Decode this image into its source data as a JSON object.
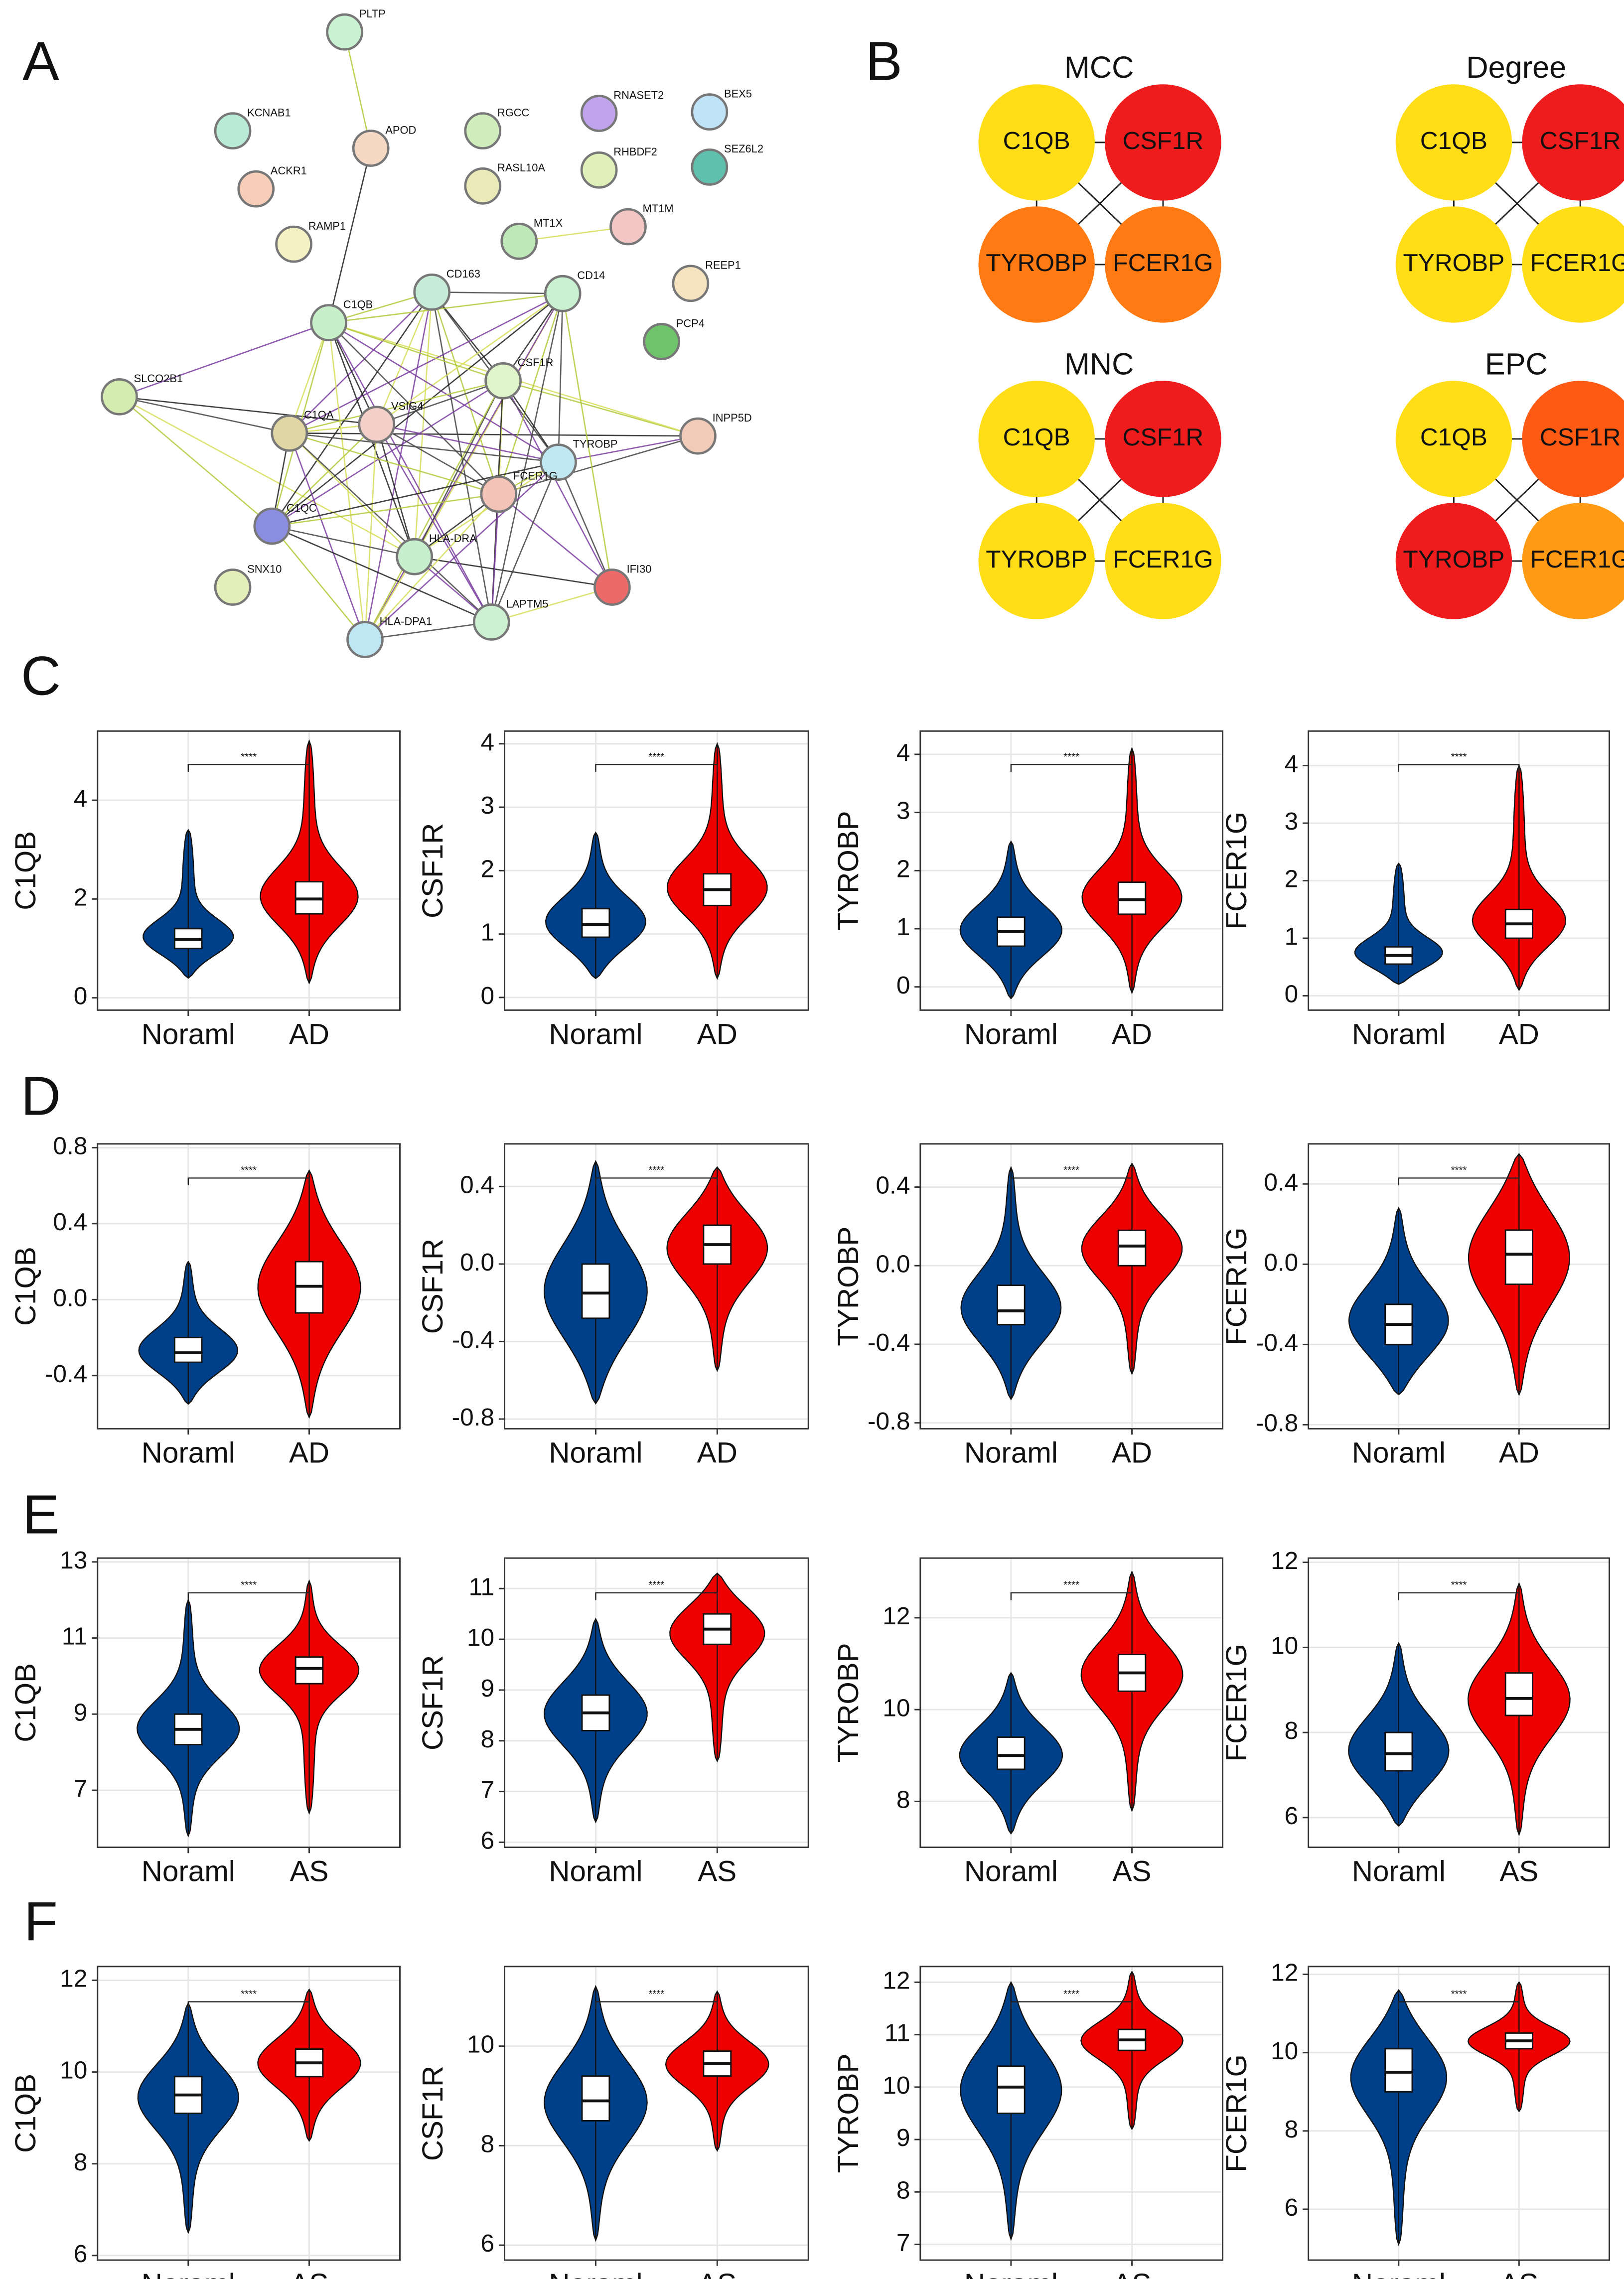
{
  "panel_labels": [
    "A",
    "B",
    "C",
    "D",
    "E",
    "F"
  ],
  "network": {
    "nodes": [
      {
        "label": "PLTP",
        "color": "#c9f2d2"
      },
      {
        "label": "KCNAB1",
        "color": "#b8ead6"
      },
      {
        "label": "APOD",
        "color": "#f6d9c4"
      },
      {
        "label": "ACKR1",
        "color": "#f6cdb7"
      },
      {
        "label": "RAMP1",
        "color": "#f4f2c4"
      },
      {
        "label": "RGCC",
        "color": "#cfeebc"
      },
      {
        "label": "RASL10A",
        "color": "#e9eab8"
      },
      {
        "label": "RNASET2",
        "color": "#bfa3ec"
      },
      {
        "label": "RHBDF2",
        "color": "#dff0b8"
      },
      {
        "label": "BEX5",
        "color": "#bfe3f7"
      },
      {
        "label": "SEZ6L2",
        "color": "#5fc0ae"
      },
      {
        "label": "MT1X",
        "color": "#bfe8b8"
      },
      {
        "label": "MT1M",
        "color": "#f3c6c6"
      },
      {
        "label": "REEP1",
        "color": "#f5e3c0"
      },
      {
        "label": "CD163",
        "color": "#c6ecd8"
      },
      {
        "label": "CD14",
        "color": "#c9f0d0"
      },
      {
        "label": "PCP4",
        "color": "#6fc36b"
      },
      {
        "label": "C1QB",
        "color": "#c8f0c8"
      },
      {
        "label": "SLCO2B1",
        "color": "#d4ecb0"
      },
      {
        "label": "CSF1R",
        "color": "#dff4c8"
      },
      {
        "label": "VSIG4",
        "color": "#f3cfc8"
      },
      {
        "label": "C1QA",
        "color": "#e0d6a4"
      },
      {
        "label": "INPP5D",
        "color": "#f2cbb8"
      },
      {
        "label": "TYROBP",
        "color": "#bfe8f3"
      },
      {
        "label": "FCER1G",
        "color": "#f4c3b7"
      },
      {
        "label": "C1QC",
        "color": "#8b8ee0"
      },
      {
        "label": "HLA-DRA",
        "color": "#c7efce"
      },
      {
        "label": "SNX10",
        "color": "#e3eeb8"
      },
      {
        "label": "IFI30",
        "color": "#ec6a6a"
      },
      {
        "label": "HLA-DPA1",
        "color": "#bfe6f3"
      },
      {
        "label": "LAPTM5",
        "color": "#cdefd2"
      }
    ]
  },
  "hubs": {
    "node_labels": [
      "C1QB",
      "CSF1R",
      "TYROBP",
      "FCER1G"
    ],
    "methods": [
      {
        "title": "MCC",
        "colors": [
          "#ffdd17",
          "#ee1c1c",
          "#ff7a12",
          "#ff7a12"
        ]
      },
      {
        "title": "Degree",
        "colors": [
          "#ffdd17",
          "#ee1c1c",
          "#ffdd17",
          "#ffdd17"
        ]
      },
      {
        "title": "MNC",
        "colors": [
          "#ffdd17",
          "#ee1c1c",
          "#ffdd17",
          "#ffdd17"
        ]
      },
      {
        "title": "EPC",
        "colors": [
          "#ffdd17",
          "#ff5a14",
          "#ee1c1c",
          "#ff9a14"
        ]
      }
    ]
  },
  "chart_data": [
    {
      "type": "violin",
      "ylabel": "C1QB",
      "categories": [
        "Noraml",
        "AD"
      ],
      "colors": [
        "#003f8a",
        "#ee0000"
      ],
      "annotation": "****",
      "grid": true,
      "ylim": [
        -0.25,
        5.4
      ],
      "yticks": [
        0,
        2,
        4
      ],
      "groups": [
        {
          "min": 0.4,
          "q1": 1.0,
          "median": 1.18,
          "q3": 1.4,
          "max": 3.4
        },
        {
          "min": 0.3,
          "q1": 1.7,
          "median": 2.0,
          "q3": 2.35,
          "max": 5.2
        }
      ]
    },
    {
      "type": "violin",
      "ylabel": "CSF1R",
      "categories": [
        "Noraml",
        "AD"
      ],
      "colors": [
        "#003f8a",
        "#ee0000"
      ],
      "annotation": "****",
      "grid": true,
      "ylim": [
        -0.2,
        4.2
      ],
      "yticks": [
        0,
        1,
        2,
        3,
        4
      ],
      "groups": [
        {
          "min": 0.3,
          "q1": 0.95,
          "median": 1.15,
          "q3": 1.4,
          "max": 2.6
        },
        {
          "min": 0.3,
          "q1": 1.45,
          "median": 1.7,
          "q3": 1.95,
          "max": 4.0
        }
      ]
    },
    {
      "type": "violin",
      "ylabel": "TYROBP",
      "categories": [
        "Noraml",
        "AD"
      ],
      "colors": [
        "#003f8a",
        "#ee0000"
      ],
      "annotation": "****",
      "grid": true,
      "ylim": [
        -0.4,
        4.4
      ],
      "yticks": [
        0,
        1,
        2,
        3,
        4
      ],
      "groups": [
        {
          "min": -0.2,
          "q1": 0.7,
          "median": 0.95,
          "q3": 1.2,
          "max": 2.5
        },
        {
          "min": -0.1,
          "q1": 1.25,
          "median": 1.5,
          "q3": 1.8,
          "max": 4.1
        }
      ]
    },
    {
      "type": "violin",
      "ylabel": "FCER1G",
      "categories": [
        "Noraml",
        "AD"
      ],
      "colors": [
        "#003f8a",
        "#ee0000"
      ],
      "annotation": "****",
      "grid": true,
      "ylim": [
        -0.25,
        4.6
      ],
      "yticks": [
        0,
        1,
        2,
        3,
        4
      ],
      "groups": [
        {
          "min": 0.2,
          "q1": 0.55,
          "median": 0.7,
          "q3": 0.85,
          "max": 2.3
        },
        {
          "min": 0.1,
          "q1": 1.0,
          "median": 1.25,
          "q3": 1.5,
          "max": 4.0
        }
      ]
    },
    {
      "type": "violin",
      "ylabel": "C1QB",
      "categories": [
        "Noraml",
        "AD"
      ],
      "colors": [
        "#003f8a",
        "#ee0000"
      ],
      "annotation": "****",
      "grid": true,
      "ylim": [
        -0.68,
        0.82
      ],
      "yticks": [
        -0.4,
        {
          "value": 0,
          "label": "0.0"
        },
        0.4,
        0.8
      ],
      "groups": [
        {
          "min": -0.55,
          "q1": -0.33,
          "median": -0.28,
          "q3": -0.2,
          "max": 0.2
        },
        {
          "min": -0.62,
          "q1": -0.07,
          "median": 0.07,
          "q3": 0.2,
          "max": 0.68
        }
      ]
    },
    {
      "type": "violin",
      "ylabel": "CSF1R",
      "categories": [
        "Noraml",
        "AD"
      ],
      "colors": [
        "#003f8a",
        "#ee0000"
      ],
      "annotation": "****",
      "grid": true,
      "ylim": [
        -0.85,
        0.62
      ],
      "yticks": [
        -0.8,
        -0.4,
        {
          "value": 0,
          "label": "0.0"
        },
        0.4
      ],
      "groups": [
        {
          "min": -0.72,
          "q1": -0.28,
          "median": -0.15,
          "q3": 0.0,
          "max": 0.53
        },
        {
          "min": -0.55,
          "q1": 0.0,
          "median": 0.1,
          "q3": 0.2,
          "max": 0.5
        }
      ]
    },
    {
      "type": "violin",
      "ylabel": "TYROBP",
      "categories": [
        "Noraml",
        "AD"
      ],
      "colors": [
        "#003f8a",
        "#ee0000"
      ],
      "annotation": "****",
      "grid": true,
      "ylim": [
        -0.83,
        0.62
      ],
      "yticks": [
        -0.8,
        -0.4,
        {
          "value": 0,
          "label": "0.0"
        },
        0.4
      ],
      "groups": [
        {
          "min": -0.68,
          "q1": -0.3,
          "median": -0.23,
          "q3": -0.1,
          "max": 0.5
        },
        {
          "min": -0.55,
          "q1": 0.0,
          "median": 0.1,
          "q3": 0.18,
          "max": 0.52
        }
      ]
    },
    {
      "type": "violin",
      "ylabel": "FCER1G",
      "categories": [
        "Noraml",
        "AD"
      ],
      "colors": [
        "#003f8a",
        "#ee0000"
      ],
      "annotation": "****",
      "grid": true,
      "ylim": [
        -0.82,
        0.6
      ],
      "yticks": [
        -0.8,
        -0.4,
        {
          "value": 0,
          "label": "0.0"
        },
        0.4
      ],
      "groups": [
        {
          "min": -0.65,
          "q1": -0.4,
          "median": -0.3,
          "q3": -0.2,
          "max": 0.28
        },
        {
          "min": -0.65,
          "q1": -0.1,
          "median": 0.05,
          "q3": 0.17,
          "max": 0.55
        }
      ]
    },
    {
      "type": "violin",
      "ylabel": "C1QB",
      "categories": [
        "Noraml",
        "AS"
      ],
      "colors": [
        "#003f8a",
        "#ee0000"
      ],
      "annotation": "****",
      "grid": true,
      "ylim": [
        5.5,
        13.1
      ],
      "yticks": [
        7,
        9,
        11,
        13
      ],
      "groups": [
        {
          "min": 5.8,
          "q1": 8.2,
          "median": 8.6,
          "q3": 9.0,
          "max": 12.0
        },
        {
          "min": 6.4,
          "q1": 9.8,
          "median": 10.2,
          "q3": 10.5,
          "max": 12.5
        }
      ]
    },
    {
      "type": "violin",
      "ylabel": "CSF1R",
      "categories": [
        "Noraml",
        "AS"
      ],
      "colors": [
        "#003f8a",
        "#ee0000"
      ],
      "annotation": "****",
      "grid": true,
      "ylim": [
        5.9,
        11.6
      ],
      "yticks": [
        6,
        7,
        8,
        9,
        10,
        11
      ],
      "groups": [
        {
          "min": 6.4,
          "q1": 8.2,
          "median": 8.55,
          "q3": 8.9,
          "max": 10.4
        },
        {
          "min": 7.6,
          "q1": 9.9,
          "median": 10.2,
          "q3": 10.5,
          "max": 11.3
        }
      ]
    },
    {
      "type": "violin",
      "ylabel": "TYROBP",
      "categories": [
        "Noraml",
        "AS"
      ],
      "colors": [
        "#003f8a",
        "#ee0000"
      ],
      "annotation": "****",
      "grid": true,
      "ylim": [
        7.0,
        13.3
      ],
      "yticks": [
        8,
        10,
        12
      ],
      "groups": [
        {
          "min": 7.3,
          "q1": 8.7,
          "median": 9.0,
          "q3": 9.4,
          "max": 10.8
        },
        {
          "min": 7.8,
          "q1": 10.4,
          "median": 10.8,
          "q3": 11.2,
          "max": 13.0
        }
      ]
    },
    {
      "type": "violin",
      "ylabel": "FCER1G",
      "categories": [
        "Noraml",
        "AS"
      ],
      "colors": [
        "#003f8a",
        "#ee0000"
      ],
      "annotation": "****",
      "grid": true,
      "ylim": [
        5.3,
        12.1
      ],
      "yticks": [
        6,
        8,
        10,
        12
      ],
      "groups": [
        {
          "min": 5.8,
          "q1": 7.1,
          "median": 7.5,
          "q3": 8.0,
          "max": 10.1
        },
        {
          "min": 5.6,
          "q1": 8.4,
          "median": 8.8,
          "q3": 9.4,
          "max": 11.5
        }
      ]
    },
    {
      "type": "violin",
      "ylabel": "C1QB",
      "categories": [
        "Noraml",
        "AS"
      ],
      "colors": [
        "#003f8a",
        "#ee0000"
      ],
      "annotation": "****",
      "grid": true,
      "ylim": [
        5.9,
        12.3
      ],
      "yticks": [
        6,
        8,
        10,
        12
      ],
      "groups": [
        {
          "min": 6.5,
          "q1": 9.1,
          "median": 9.5,
          "q3": 9.9,
          "max": 11.5
        },
        {
          "min": 8.5,
          "q1": 9.9,
          "median": 10.2,
          "q3": 10.5,
          "max": 11.8
        }
      ]
    },
    {
      "type": "violin",
      "ylabel": "CSF1R",
      "categories": [
        "Noraml",
        "AS"
      ],
      "colors": [
        "#003f8a",
        "#ee0000"
      ],
      "annotation": "****",
      "grid": true,
      "ylim": [
        5.7,
        11.6
      ],
      "yticks": [
        6,
        8,
        10
      ],
      "groups": [
        {
          "min": 6.1,
          "q1": 8.5,
          "median": 8.9,
          "q3": 9.4,
          "max": 11.2
        },
        {
          "min": 7.9,
          "q1": 9.4,
          "median": 9.65,
          "q3": 9.9,
          "max": 11.1
        }
      ]
    },
    {
      "type": "violin",
      "ylabel": "TYROBP",
      "categories": [
        "Noraml",
        "AS"
      ],
      "colors": [
        "#003f8a",
        "#ee0000"
      ],
      "annotation": "****",
      "grid": true,
      "ylim": [
        6.7,
        12.3
      ],
      "yticks": [
        7,
        8,
        9,
        10,
        11,
        12
      ],
      "groups": [
        {
          "min": 7.1,
          "q1": 9.5,
          "median": 10.0,
          "q3": 10.4,
          "max": 12.0
        },
        {
          "min": 9.2,
          "q1": 10.7,
          "median": 10.9,
          "q3": 11.1,
          "max": 12.2
        }
      ]
    },
    {
      "type": "violin",
      "ylabel": "FCER1G",
      "categories": [
        "Noraml",
        "AS"
      ],
      "colors": [
        "#003f8a",
        "#ee0000"
      ],
      "annotation": "****",
      "grid": true,
      "ylim": [
        4.7,
        12.2
      ],
      "yticks": [
        6,
        8,
        10,
        12
      ],
      "groups": [
        {
          "min": 5.1,
          "q1": 9.0,
          "median": 9.5,
          "q3": 10.1,
          "max": 11.6
        },
        {
          "min": 8.5,
          "q1": 10.1,
          "median": 10.3,
          "q3": 10.5,
          "max": 11.8
        }
      ]
    }
  ]
}
